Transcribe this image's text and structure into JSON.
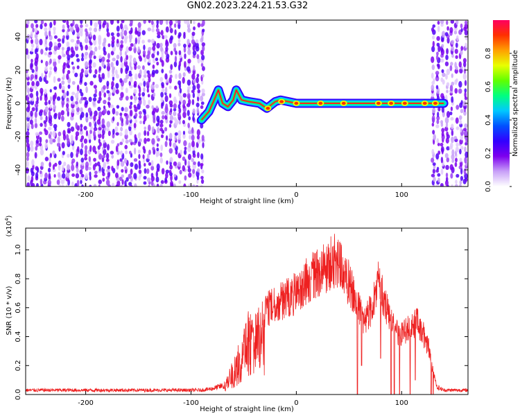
{
  "title": "GN02.2023.224.21.53.G32",
  "chart_data": [
    {
      "type": "heatmap",
      "xlabel": "Height of straight line (km)",
      "ylabel": "Frequency (Hz)",
      "xlim": [
        -257,
        163
      ],
      "ylim": [
        -50,
        50
      ],
      "xticks": [
        -200,
        -100,
        0,
        100
      ],
      "yticks": [
        -40,
        -20,
        0,
        20,
        40
      ],
      "colorbar": {
        "label": "Normalized spectral amplitude",
        "range": [
          0,
          1
        ],
        "ticks": [
          "0.0",
          "0.2",
          "0.4",
          "0.6",
          "0.8"
        ],
        "tick_values": [
          0.0,
          0.2,
          0.4,
          0.6,
          0.8
        ],
        "colormap": [
          "#ffffff",
          "#c8a0f8",
          "#7d00ee",
          "#3200ff",
          "#0050ff",
          "#00c8ff",
          "#00ff80",
          "#60ff00",
          "#e8ff00",
          "#ffa000",
          "#ff3000",
          "#ff0060"
        ]
      },
      "noise_regions": [
        [
          -257,
          -87
        ],
        [
          128,
          163
        ]
      ],
      "signal_path": [
        [
          -90,
          -10
        ],
        [
          -83,
          -5
        ],
        [
          -78,
          2
        ],
        [
          -74,
          8
        ],
        [
          -70,
          0
        ],
        [
          -65,
          -2
        ],
        [
          -60,
          2
        ],
        [
          -57,
          8
        ],
        [
          -52,
          2
        ],
        [
          -45,
          1
        ],
        [
          -35,
          0
        ],
        [
          -28,
          -3
        ],
        [
          -20,
          1
        ],
        [
          -15,
          2
        ],
        [
          0,
          0
        ],
        [
          50,
          0
        ],
        [
          100,
          0
        ],
        [
          130,
          0
        ],
        [
          140,
          0
        ]
      ],
      "signal_peaks": [
        [
          -27,
          -3
        ],
        [
          -14,
          1
        ],
        [
          0,
          0
        ],
        [
          23,
          0
        ],
        [
          45,
          0
        ],
        [
          78,
          0
        ],
        [
          90,
          0
        ],
        [
          103,
          0
        ],
        [
          122,
          0
        ],
        [
          132,
          0
        ]
      ]
    },
    {
      "type": "line",
      "xlabel": "Height of straight line (km)",
      "ylabel": "SNR (10 * v/v)",
      "y_multiplier": "x10^4",
      "xlim": [
        -257,
        163
      ],
      "ylim": [
        0,
        1.15
      ],
      "xticks": [
        -200,
        -100,
        0,
        100
      ],
      "yticks": [
        "0.0",
        "0.2",
        "0.4",
        "0.6",
        "0.8",
        "1.0"
      ],
      "ytick_values": [
        0.0,
        0.2,
        0.4,
        0.6,
        0.8,
        1.0
      ],
      "color": "#ee2020",
      "envelope": [
        [
          -257,
          0.03
        ],
        [
          -150,
          0.03
        ],
        [
          -90,
          0.03
        ],
        [
          -80,
          0.04
        ],
        [
          -70,
          0.06
        ],
        [
          -60,
          0.25
        ],
        [
          -50,
          0.45
        ],
        [
          -45,
          0.65
        ],
        [
          -40,
          0.55
        ],
        [
          -30,
          0.7
        ],
        [
          -20,
          0.75
        ],
        [
          -10,
          0.8
        ],
        [
          0,
          0.85
        ],
        [
          10,
          0.95
        ],
        [
          20,
          1.02
        ],
        [
          30,
          1.08
        ],
        [
          38,
          1.12
        ],
        [
          45,
          1.0
        ],
        [
          52,
          0.9
        ],
        [
          58,
          0.75
        ],
        [
          65,
          0.62
        ],
        [
          70,
          0.7
        ],
        [
          75,
          0.82
        ],
        [
          78,
          0.93
        ],
        [
          82,
          0.82
        ],
        [
          88,
          0.65
        ],
        [
          95,
          0.52
        ],
        [
          100,
          0.5
        ],
        [
          105,
          0.54
        ],
        [
          110,
          0.58
        ],
        [
          115,
          0.6
        ],
        [
          120,
          0.52
        ],
        [
          126,
          0.38
        ],
        [
          130,
          0.18
        ],
        [
          134,
          0.05
        ],
        [
          140,
          0.03
        ],
        [
          163,
          0.03
        ]
      ],
      "dropouts": [
        [
          58,
          0.0
        ],
        [
          62,
          0.2
        ],
        [
          80,
          0.25
        ],
        [
          90,
          0.0
        ],
        [
          93,
          0.0
        ],
        [
          98,
          0.0
        ],
        [
          108,
          0.0
        ],
        [
          113,
          0.1
        ],
        [
          128,
          0.0
        ],
        [
          130,
          0.0
        ]
      ]
    }
  ]
}
